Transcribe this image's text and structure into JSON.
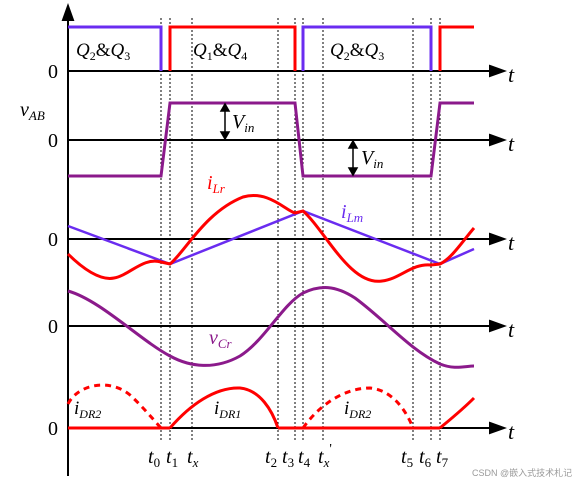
{
  "colors": {
    "axis": "#000000",
    "red": "#ff0000",
    "blue_purple": "#6a2cf0",
    "purple": "#8b1a8b",
    "dotted_guide": "#000000"
  },
  "panel_labels": {
    "gate_left": {
      "a": "Q",
      "a_sub": "2",
      "amp": "&",
      "b": "Q",
      "b_sub": "3"
    },
    "gate_mid": {
      "a": "Q",
      "a_sub": "1",
      "amp": "&",
      "b": "Q",
      "b_sub": "4"
    },
    "gate_right": {
      "a": "Q",
      "a_sub": "2",
      "amp": "&",
      "b": "Q",
      "b_sub": "3"
    },
    "vab": {
      "main": "v",
      "sub": "AB"
    },
    "vin_upper": {
      "main": "V",
      "sub": "in"
    },
    "vin_lower": {
      "main": "V",
      "sub": "in"
    },
    "ilr": {
      "main": "i",
      "sub": "Lr"
    },
    "ilm": {
      "main": "i",
      "sub": "Lm"
    },
    "vcr": {
      "main": "v",
      "sub": "Cr"
    },
    "idr2_left": {
      "main": "i",
      "sub": "DR2"
    },
    "idr1": {
      "main": "i",
      "sub": "DR1"
    },
    "idr2_right": {
      "main": "i",
      "sub": "DR2"
    }
  },
  "axis_labels": {
    "zero": "0",
    "t": "t"
  },
  "time_labels": [
    {
      "main": "t",
      "sub": "0"
    },
    {
      "main": "t",
      "sub": "1"
    },
    {
      "main": "t",
      "sub": "x"
    },
    {
      "main": "t",
      "sub": "2"
    },
    {
      "main": "t",
      "sub": "3"
    },
    {
      "main": "t",
      "sub": "4"
    },
    {
      "main": "t",
      "sub": "x",
      "prime": "'"
    },
    {
      "main": "t",
      "sub": "5"
    },
    {
      "main": "t",
      "sub": "6"
    },
    {
      "main": "t",
      "sub": "7"
    }
  ],
  "watermark": "CSDN @嵌入式技术札记"
}
